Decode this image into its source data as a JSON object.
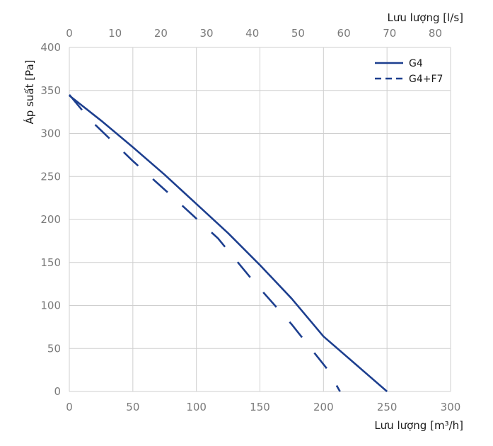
{
  "chart_data": {
    "type": "line",
    "xlabel": "Lưu lượng [m³/h]",
    "x2label": "Lưu lượng [l/s]",
    "ylabel": "Áp suất [Pa]",
    "xlim": [
      0,
      300
    ],
    "x2lim": [
      0,
      83.33
    ],
    "ylim": [
      0,
      400
    ],
    "x_ticks": [
      0,
      50,
      100,
      150,
      200,
      250,
      300
    ],
    "x2_ticks": [
      0,
      10,
      20,
      30,
      40,
      50,
      60,
      70,
      80
    ],
    "y_ticks": [
      0,
      50,
      100,
      150,
      200,
      250,
      300,
      350,
      400
    ],
    "grid": true,
    "legend_position": "top-right",
    "line_color": "#1d3f8f",
    "series": [
      {
        "name": "G4",
        "style": "solid",
        "x": [
          0,
          25,
          50,
          75,
          100,
          125,
          150,
          175,
          200,
          225,
          250
        ],
        "y": [
          344,
          315,
          284,
          252,
          218,
          184,
          147,
          108,
          64,
          32,
          0
        ]
      },
      {
        "name": "G4+F7",
        "style": "dashed",
        "x": [
          0,
          17,
          50,
          83,
          117,
          145,
          175,
          203,
          213
        ],
        "y": [
          345,
          315,
          268,
          224,
          178,
          128,
          78,
          26,
          0
        ]
      }
    ]
  }
}
